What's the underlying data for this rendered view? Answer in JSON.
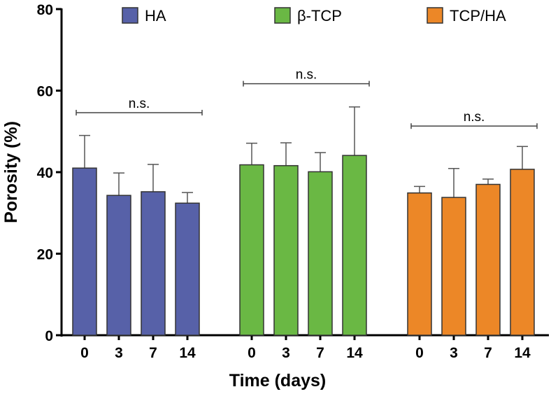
{
  "chart_data": {
    "type": "bar",
    "xlabel": "Time (days)",
    "ylabel": "Porosity (%)",
    "ylim": [
      0,
      80
    ],
    "yticks": [
      0,
      20,
      40,
      60,
      80
    ],
    "categories": [
      "0",
      "3",
      "7",
      "14"
    ],
    "legend_position": "top",
    "series": [
      {
        "name": "HA",
        "color": "#5761a8",
        "values": [
          41.0,
          34.3,
          35.2,
          32.4
        ],
        "error_upper": [
          49.0,
          39.8,
          41.9,
          35.0
        ],
        "significance": {
          "label": "n.s.",
          "y": 54.6
        }
      },
      {
        "name": "β-TCP",
        "color": "#6ab844",
        "values": [
          41.8,
          41.6,
          40.1,
          44.1
        ],
        "error_upper": [
          47.1,
          47.2,
          44.8,
          56.0
        ],
        "significance": {
          "label": "n.s.",
          "y": 61.7
        }
      },
      {
        "name": "TCP/HA",
        "color": "#ec8727",
        "values": [
          34.9,
          33.8,
          37.0,
          40.7
        ],
        "error_upper": [
          36.5,
          40.9,
          38.3,
          46.3
        ],
        "significance": {
          "label": "n.s.",
          "y": 51.3
        }
      }
    ]
  }
}
